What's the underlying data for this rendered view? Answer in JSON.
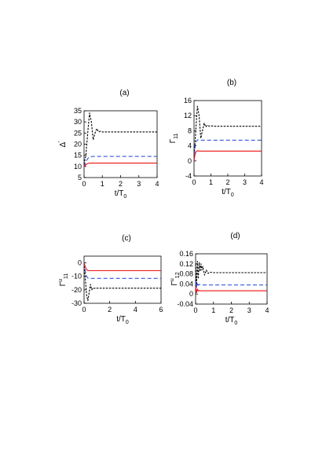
{
  "chart_data": [
    {
      "type": "line",
      "panel": "(a)",
      "xlabel_base": "t/T",
      "xlabel_sub": "0",
      "ylabel_base": "Δ",
      "ylabel_sup": "'",
      "xlim": [
        0,
        4
      ],
      "ylim": [
        5,
        35
      ],
      "xticks": [
        0,
        1,
        2,
        3,
        4
      ],
      "yticks": [
        5,
        10,
        15,
        20,
        25,
        30,
        35
      ],
      "series": [
        {
          "color": "#000000",
          "dash": "dotted",
          "x": [
            0,
            0.1,
            0.2,
            0.3,
            0.4,
            0.5,
            0.6,
            0.7,
            0.8,
            0.9,
            1.0,
            1.2,
            1.5,
            2,
            3,
            4
          ],
          "y": [
            11,
            15,
            25,
            34,
            30,
            22,
            25,
            27,
            25.5,
            25.8,
            25.5,
            25.5,
            25.5,
            25.5,
            25.5,
            25.5
          ]
        },
        {
          "color": "#3355dd",
          "dash": "dashed",
          "x": [
            0,
            0.1,
            0.2,
            0.3,
            0.5,
            1,
            2,
            3,
            4
          ],
          "y": [
            10,
            12,
            13.5,
            14.3,
            14.5,
            14.5,
            14.5,
            14.5,
            14.5
          ]
        },
        {
          "color": "#ee1111",
          "dash": "solid",
          "x": [
            0,
            0.1,
            0.2,
            0.3,
            0.5,
            1,
            2,
            3,
            4
          ],
          "y": [
            10,
            10.8,
            11.3,
            11.5,
            11.5,
            11.5,
            11.5,
            11.5,
            11.5
          ]
        }
      ]
    },
    {
      "type": "line",
      "panel": "(b)",
      "xlabel_base": "t/T",
      "xlabel_sub": "0",
      "ylabel_base": "Γ",
      "ylabel_sub": "11",
      "xlim": [
        0,
        4
      ],
      "ylim": [
        -4,
        16
      ],
      "xticks": [
        0,
        1,
        2,
        3,
        4
      ],
      "yticks": [
        -4,
        0,
        4,
        8,
        12,
        16
      ],
      "series": [
        {
          "color": "#000000",
          "dash": "dotted",
          "x": [
            0,
            0.1,
            0.2,
            0.3,
            0.4,
            0.5,
            0.6,
            0.7,
            0.8,
            0.9,
            1.0,
            1.2,
            1.5,
            2,
            3,
            4
          ],
          "y": [
            0,
            8,
            14.5,
            12,
            6,
            8,
            10,
            9,
            9.5,
            9.2,
            9.3,
            9.2,
            9.2,
            9.2,
            9.2,
            9.2
          ]
        },
        {
          "color": "#3355dd",
          "dash": "dashed",
          "x": [
            0,
            0.05,
            0.1,
            0.2,
            0.3,
            0.5,
            1,
            2,
            3,
            4
          ],
          "y": [
            0,
            3,
            4.8,
            5.6,
            5.5,
            5.5,
            5.5,
            5.5,
            5.5,
            5.5
          ]
        },
        {
          "color": "#ee1111",
          "dash": "solid",
          "x": [
            0,
            0.05,
            0.1,
            0.2,
            0.3,
            0.5,
            1,
            2,
            3,
            4
          ],
          "y": [
            0,
            1.5,
            2.3,
            2.7,
            2.6,
            2.6,
            2.6,
            2.6,
            2.6,
            2.6
          ]
        }
      ]
    },
    {
      "type": "line",
      "panel": "(c)",
      "xlabel_base": "t/T",
      "xlabel_sub": "0",
      "ylabel_base": "Γ",
      "ylabel_sup": "u",
      "ylabel_sub": "11",
      "xlim": [
        0,
        6
      ],
      "ylim": [
        -30,
        5
      ],
      "xticks": [
        0,
        2,
        4,
        6
      ],
      "yticks": [
        -30,
        -20,
        -10,
        0
      ],
      "series": [
        {
          "color": "#000000",
          "dash": "dotted",
          "x": [
            0,
            0.1,
            0.2,
            0.3,
            0.4,
            0.5,
            0.6,
            0.7,
            0.8,
            0.9,
            1.0,
            1.3,
            2,
            3,
            4,
            5,
            6
          ],
          "y": [
            0,
            -12,
            -24,
            -28,
            -22,
            -16,
            -20,
            -18.5,
            -19,
            -18.6,
            -18.8,
            -18.8,
            -18.8,
            -18.8,
            -18.8,
            -18.8,
            -18.8
          ]
        },
        {
          "color": "#3355dd",
          "dash": "dashed",
          "x": [
            0,
            0.1,
            0.2,
            0.3,
            0.5,
            1,
            2,
            3,
            4,
            5,
            6
          ],
          "y": [
            0,
            -6,
            -10,
            -11.3,
            -11.5,
            -11.5,
            -11.5,
            -11.5,
            -11.5,
            -11.5,
            -11.5
          ]
        },
        {
          "color": "#ee1111",
          "dash": "solid",
          "x": [
            0,
            0.1,
            0.2,
            0.3,
            0.5,
            1,
            2,
            3,
            4,
            5,
            6
          ],
          "y": [
            0,
            -3,
            -5,
            -5.7,
            -5.8,
            -5.8,
            -5.8,
            -5.8,
            -5.8,
            -5.8,
            -5.8
          ]
        }
      ]
    },
    {
      "type": "line",
      "panel": "(d)",
      "xlabel_base": "t/T",
      "xlabel_sub": "0",
      "ylabel_base": "Γ",
      "ylabel_sup": "u",
      "ylabel_sub": "12",
      "xlim": [
        0,
        4
      ],
      "ylim": [
        -0.04,
        0.16
      ],
      "xticks": [
        0,
        1,
        2,
        3,
        4
      ],
      "yticks": [
        -0.04,
        0,
        0.04,
        0.08,
        0.12,
        0.16
      ],
      "series": [
        {
          "color": "#000000",
          "dash": "dotted",
          "x": [
            0,
            0.05,
            0.1,
            0.15,
            0.2,
            0.25,
            0.3,
            0.35,
            0.4,
            0.5,
            0.6,
            0.7,
            0.8,
            1.0,
            1.5,
            2,
            3,
            4
          ],
          "y": [
            0.12,
            0.03,
            0.13,
            0.06,
            0.125,
            0.09,
            0.12,
            0.095,
            0.11,
            0.075,
            0.095,
            0.082,
            0.087,
            0.085,
            0.085,
            0.085,
            0.085,
            0.085
          ]
        },
        {
          "color": "#3355dd",
          "dash": "dashed",
          "x": [
            0,
            0.05,
            0.1,
            0.15,
            0.2,
            0.3,
            0.5,
            1,
            2,
            3,
            4
          ],
          "y": [
            0.05,
            0.025,
            0.045,
            0.035,
            0.038,
            0.036,
            0.036,
            0.036,
            0.036,
            0.036,
            0.036
          ]
        },
        {
          "color": "#ee1111",
          "dash": "solid",
          "x": [
            0,
            0.05,
            0.1,
            0.15,
            0.2,
            0.3,
            0.5,
            1,
            2,
            3,
            4
          ],
          "y": [
            0.03,
            0.005,
            0.02,
            0.012,
            0.014,
            0.013,
            0.013,
            0.013,
            0.013,
            0.013,
            0.013
          ]
        }
      ]
    }
  ]
}
